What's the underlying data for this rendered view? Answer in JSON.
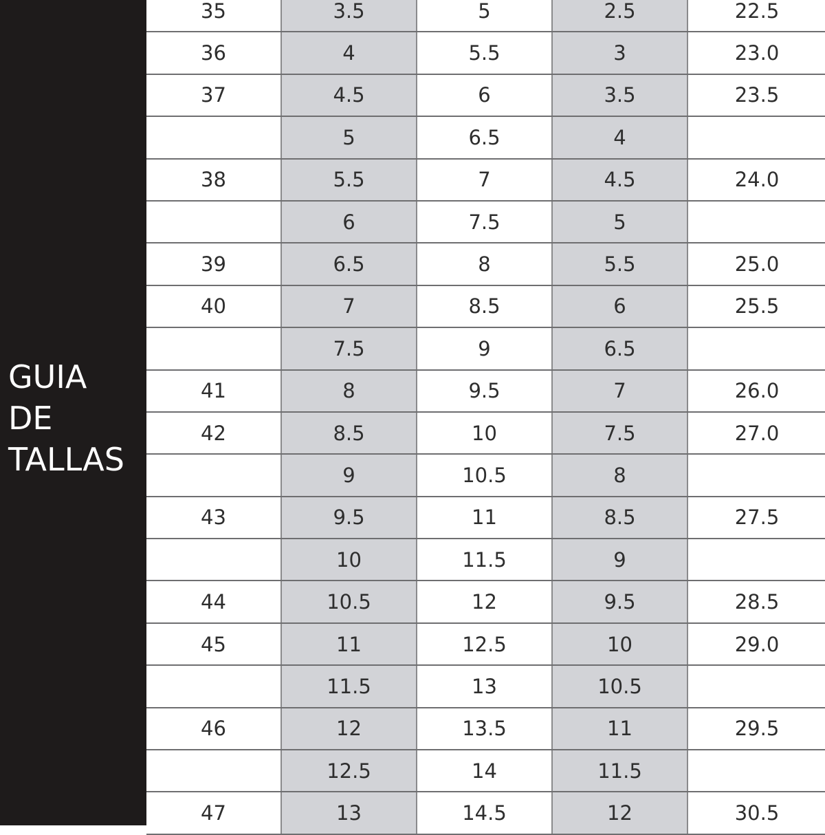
{
  "title": "GUIA\nDE\nTALLAS",
  "colors": {
    "sidebar": "#1e1b1b",
    "shaded_column": "#d2d3d7"
  },
  "rows": [
    [
      "35",
      "3.5",
      "5",
      "2.5",
      "22.5"
    ],
    [
      "36",
      "4",
      "5.5",
      "3",
      "23.0"
    ],
    [
      "37",
      "4.5",
      "6",
      "3.5",
      "23.5"
    ],
    [
      "",
      "5",
      "6.5",
      "4",
      ""
    ],
    [
      "38",
      "5.5",
      "7",
      "4.5",
      "24.0"
    ],
    [
      "",
      "6",
      "7.5",
      "5",
      ""
    ],
    [
      "39",
      "6.5",
      "8",
      "5.5",
      "25.0"
    ],
    [
      "40",
      "7",
      "8.5",
      "6",
      "25.5"
    ],
    [
      "",
      "7.5",
      "9",
      "6.5",
      ""
    ],
    [
      "41",
      "8",
      "9.5",
      "7",
      "26.0"
    ],
    [
      "42",
      "8.5",
      "10",
      "7.5",
      "27.0"
    ],
    [
      "",
      "9",
      "10.5",
      "8",
      ""
    ],
    [
      "43",
      "9.5",
      "11",
      "8.5",
      "27.5"
    ],
    [
      "",
      "10",
      "11.5",
      "9",
      ""
    ],
    [
      "44",
      "10.5",
      "12",
      "9.5",
      "28.5"
    ],
    [
      "45",
      "11",
      "12.5",
      "10",
      "29.0"
    ],
    [
      "",
      "11.5",
      "13",
      "10.5",
      ""
    ],
    [
      "46",
      "12",
      "13.5",
      "11",
      "29.5"
    ],
    [
      "",
      "12.5",
      "14",
      "11.5",
      ""
    ],
    [
      "47",
      "13",
      "14.5",
      "12",
      "30.5"
    ]
  ]
}
